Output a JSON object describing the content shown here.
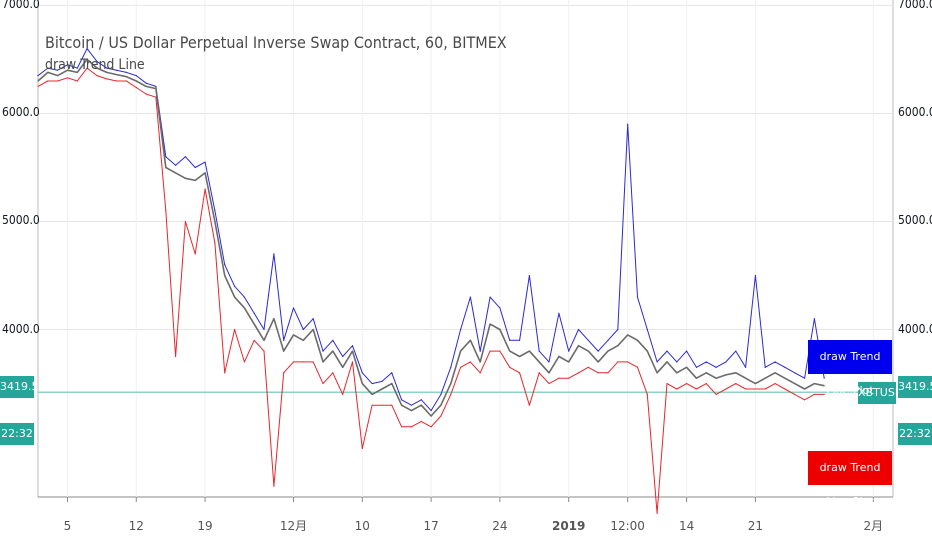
{
  "header": {
    "symbol_title": "Bitcoin / US Dollar Perpetual Inverse Swap Contract, 60, BITMEX",
    "indicator_title": "draw Trend Line"
  },
  "price_axis": {
    "labels": [
      "7000.0",
      "6000.0",
      "5000.0",
      "4000.0"
    ]
  },
  "badges": {
    "left_price": "3419.5",
    "left_time": "22:32",
    "right_price": "3419.5",
    "right_time": "22:32",
    "symbol": "XBTUSD",
    "plot_blue": "draw Trend Line:Plot",
    "plot_red": "draw Trend Line:Plot"
  },
  "colors": {
    "blue_line": "#2a2ad6",
    "red_line": "#e8262b",
    "price_line": "#6b6b6b",
    "teal": "#26a69a",
    "hline": "#8fd3c8",
    "blue_badge": "#0000ee",
    "red_badge": "#ee0000"
  },
  "chart_data": {
    "type": "line",
    "title": "Bitcoin / US Dollar Perpetual Inverse Swap Contract, 60, BITMEX",
    "x_ticks": [
      "5",
      "12",
      "19",
      "12月",
      "10",
      "17",
      "24",
      "2019",
      "12:00",
      "14",
      "21",
      "2月"
    ],
    "x_tick_positions": [
      5,
      12,
      19,
      28,
      35,
      42,
      49,
      56,
      62,
      68,
      75,
      87
    ],
    "ylim": [
      2450,
      7050
    ],
    "y_ticks": [
      7000,
      6000,
      5000,
      4000
    ],
    "xlim": [
      2,
      89
    ],
    "horizontal_line": 3419.5,
    "series": [
      {
        "key": "price",
        "values": [
          [
            2,
            6300
          ],
          [
            3,
            6380
          ],
          [
            4,
            6350
          ],
          [
            5,
            6400
          ],
          [
            6,
            6380
          ],
          [
            7,
            6500
          ],
          [
            8,
            6420
          ],
          [
            9,
            6380
          ],
          [
            10,
            6360
          ],
          [
            11,
            6340
          ],
          [
            12,
            6300
          ],
          [
            13,
            6250
          ],
          [
            14,
            6230
          ],
          [
            15,
            5500
          ],
          [
            16,
            5450
          ],
          [
            17,
            5400
          ],
          [
            18,
            5380
          ],
          [
            19,
            5450
          ],
          [
            20,
            5000
          ],
          [
            21,
            4500
          ],
          [
            22,
            4300
          ],
          [
            23,
            4200
          ],
          [
            24,
            4050
          ],
          [
            25,
            3900
          ],
          [
            26,
            4100
          ],
          [
            27,
            3800
          ],
          [
            28,
            3950
          ],
          [
            29,
            3900
          ],
          [
            30,
            4000
          ],
          [
            31,
            3700
          ],
          [
            32,
            3800
          ],
          [
            33,
            3650
          ],
          [
            34,
            3800
          ],
          [
            35,
            3500
          ],
          [
            36,
            3400
          ],
          [
            37,
            3450
          ],
          [
            38,
            3500
          ],
          [
            39,
            3300
          ],
          [
            40,
            3250
          ],
          [
            41,
            3300
          ],
          [
            42,
            3200
          ],
          [
            43,
            3300
          ],
          [
            44,
            3500
          ],
          [
            45,
            3800
          ],
          [
            46,
            3900
          ],
          [
            47,
            3700
          ],
          [
            48,
            4050
          ],
          [
            49,
            4000
          ],
          [
            50,
            3800
          ],
          [
            51,
            3750
          ],
          [
            52,
            3800
          ],
          [
            53,
            3700
          ],
          [
            54,
            3600
          ],
          [
            55,
            3750
          ],
          [
            56,
            3700
          ],
          [
            57,
            3850
          ],
          [
            58,
            3800
          ],
          [
            59,
            3700
          ],
          [
            60,
            3800
          ],
          [
            61,
            3850
          ],
          [
            62,
            3950
          ],
          [
            63,
            3900
          ],
          [
            64,
            3800
          ],
          [
            65,
            3600
          ],
          [
            66,
            3700
          ],
          [
            67,
            3600
          ],
          [
            68,
            3650
          ],
          [
            69,
            3550
          ],
          [
            70,
            3600
          ],
          [
            71,
            3550
          ],
          [
            72,
            3580
          ],
          [
            73,
            3600
          ],
          [
            74,
            3550
          ],
          [
            75,
            3500
          ],
          [
            76,
            3550
          ],
          [
            77,
            3600
          ],
          [
            78,
            3550
          ],
          [
            79,
            3500
          ],
          [
            80,
            3450
          ],
          [
            81,
            3500
          ],
          [
            82,
            3480
          ]
        ]
      },
      {
        "key": "blue",
        "values": [
          [
            2,
            6350
          ],
          [
            3,
            6420
          ],
          [
            4,
            6400
          ],
          [
            5,
            6450
          ],
          [
            6,
            6420
          ],
          [
            7,
            6600
          ],
          [
            8,
            6480
          ],
          [
            9,
            6420
          ],
          [
            10,
            6400
          ],
          [
            11,
            6380
          ],
          [
            12,
            6350
          ],
          [
            13,
            6280
          ],
          [
            14,
            6250
          ],
          [
            15,
            5600
          ],
          [
            16,
            5520
          ],
          [
            17,
            5600
          ],
          [
            18,
            5500
          ],
          [
            19,
            5550
          ],
          [
            20,
            5100
          ],
          [
            21,
            4600
          ],
          [
            22,
            4400
          ],
          [
            23,
            4300
          ],
          [
            24,
            4150
          ],
          [
            25,
            4000
          ],
          [
            26,
            4700
          ],
          [
            27,
            3900
          ],
          [
            28,
            4200
          ],
          [
            29,
            4000
          ],
          [
            30,
            4100
          ],
          [
            31,
            3800
          ],
          [
            32,
            3900
          ],
          [
            33,
            3750
          ],
          [
            34,
            3850
          ],
          [
            35,
            3600
          ],
          [
            36,
            3500
          ],
          [
            37,
            3520
          ],
          [
            38,
            3600
          ],
          [
            39,
            3350
          ],
          [
            40,
            3300
          ],
          [
            41,
            3350
          ],
          [
            42,
            3250
          ],
          [
            43,
            3400
          ],
          [
            44,
            3650
          ],
          [
            45,
            4000
          ],
          [
            46,
            4300
          ],
          [
            47,
            3800
          ],
          [
            48,
            4300
          ],
          [
            49,
            4200
          ],
          [
            50,
            3900
          ],
          [
            51,
            3900
          ],
          [
            52,
            4500
          ],
          [
            53,
            3800
          ],
          [
            54,
            3700
          ],
          [
            55,
            4150
          ],
          [
            56,
            3800
          ],
          [
            57,
            4000
          ],
          [
            58,
            3900
          ],
          [
            59,
            3800
          ],
          [
            60,
            3900
          ],
          [
            61,
            4000
          ],
          [
            62,
            5900
          ],
          [
            63,
            4300
          ],
          [
            64,
            4000
          ],
          [
            65,
            3700
          ],
          [
            66,
            3800
          ],
          [
            67,
            3700
          ],
          [
            68,
            3800
          ],
          [
            69,
            3650
          ],
          [
            70,
            3700
          ],
          [
            71,
            3650
          ],
          [
            72,
            3700
          ],
          [
            73,
            3800
          ],
          [
            74,
            3650
          ],
          [
            75,
            4500
          ],
          [
            76,
            3650
          ],
          [
            77,
            3700
          ],
          [
            78,
            3650
          ],
          [
            79,
            3600
          ],
          [
            80,
            3550
          ],
          [
            81,
            4100
          ],
          [
            82,
            3550
          ]
        ]
      },
      {
        "key": "red",
        "values": [
          [
            2,
            6250
          ],
          [
            3,
            6300
          ],
          [
            4,
            6300
          ],
          [
            5,
            6330
          ],
          [
            6,
            6300
          ],
          [
            7,
            6420
          ],
          [
            8,
            6350
          ],
          [
            9,
            6320
          ],
          [
            10,
            6300
          ],
          [
            11,
            6300
          ],
          [
            12,
            6240
          ],
          [
            13,
            6180
          ],
          [
            14,
            6150
          ],
          [
            15,
            5100
          ],
          [
            16,
            3750
          ],
          [
            17,
            5000
          ],
          [
            18,
            4700
          ],
          [
            19,
            5300
          ],
          [
            20,
            4800
          ],
          [
            21,
            3600
          ],
          [
            22,
            4000
          ],
          [
            23,
            3700
          ],
          [
            24,
            3900
          ],
          [
            25,
            3800
          ],
          [
            26,
            2550
          ],
          [
            27,
            3600
          ],
          [
            28,
            3700
          ],
          [
            29,
            3700
          ],
          [
            30,
            3700
          ],
          [
            31,
            3500
          ],
          [
            32,
            3600
          ],
          [
            33,
            3400
          ],
          [
            34,
            3700
          ],
          [
            35,
            2900
          ],
          [
            36,
            3300
          ],
          [
            37,
            3300
          ],
          [
            38,
            3300
          ],
          [
            39,
            3100
          ],
          [
            40,
            3100
          ],
          [
            41,
            3150
          ],
          [
            42,
            3100
          ],
          [
            43,
            3200
          ],
          [
            44,
            3400
          ],
          [
            45,
            3650
          ],
          [
            46,
            3700
          ],
          [
            47,
            3600
          ],
          [
            48,
            3800
          ],
          [
            49,
            3800
          ],
          [
            50,
            3650
          ],
          [
            51,
            3600
          ],
          [
            52,
            3300
          ],
          [
            53,
            3600
          ],
          [
            54,
            3500
          ],
          [
            55,
            3550
          ],
          [
            56,
            3550
          ],
          [
            57,
            3600
          ],
          [
            58,
            3650
          ],
          [
            59,
            3600
          ],
          [
            60,
            3600
          ],
          [
            61,
            3700
          ],
          [
            62,
            3700
          ],
          [
            63,
            3650
          ],
          [
            64,
            3400
          ],
          [
            65,
            2300
          ],
          [
            66,
            3500
          ],
          [
            67,
            3450
          ],
          [
            68,
            3500
          ],
          [
            69,
            3450
          ],
          [
            70,
            3500
          ],
          [
            71,
            3400
          ],
          [
            72,
            3450
          ],
          [
            73,
            3500
          ],
          [
            74,
            3450
          ],
          [
            75,
            3450
          ],
          [
            76,
            3450
          ],
          [
            77,
            3500
          ],
          [
            78,
            3450
          ],
          [
            79,
            3400
          ],
          [
            80,
            3350
          ],
          [
            81,
            3400
          ],
          [
            82,
            3400
          ]
        ]
      }
    ]
  }
}
